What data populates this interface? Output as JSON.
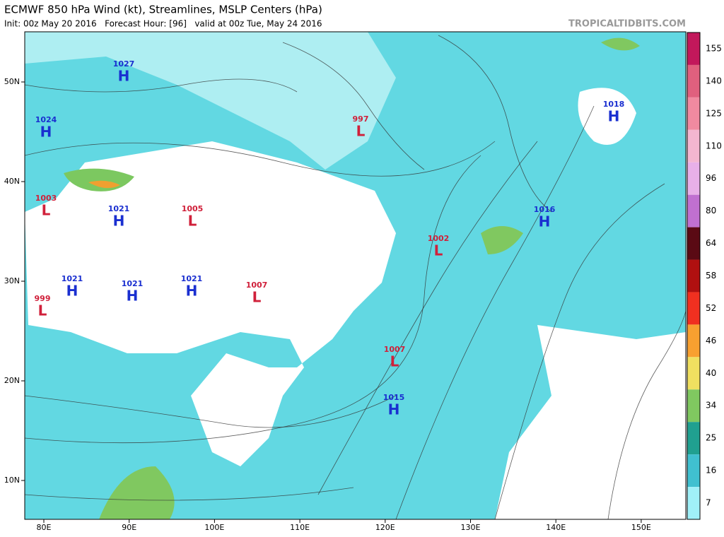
{
  "header": {
    "title": "ECMWF 850 hPa Wind (kt), Streamlines, MSLP Centers (hPa)",
    "subtitle": "Init: 00z May 20 2016   Forecast Hour: [96]   valid at 00z Tue, May 24 2016",
    "site": "TROPICALTIDBITS.COM"
  },
  "axes": {
    "lon_labels": [
      "80E",
      "90E",
      "100E",
      "110E",
      "120E",
      "130E",
      "140E",
      "150E"
    ],
    "lat_labels": [
      "50N",
      "40N",
      "30N",
      "20N",
      "10N"
    ]
  },
  "pressure_centers": [
    {
      "value": "1027",
      "type": "H"
    },
    {
      "value": "1024",
      "type": "H"
    },
    {
      "value": "997",
      "type": "L"
    },
    {
      "value": "1018",
      "type": "H"
    },
    {
      "value": "1003",
      "type": "L"
    },
    {
      "value": "1021",
      "type": "H"
    },
    {
      "value": "1005",
      "type": "L"
    },
    {
      "value": "1016",
      "type": "H"
    },
    {
      "value": "1002",
      "type": "L"
    },
    {
      "value": "1021",
      "type": "H"
    },
    {
      "value": "1021",
      "type": "H"
    },
    {
      "value": "1021",
      "type": "H"
    },
    {
      "value": "1007",
      "type": "L"
    },
    {
      "value": "999",
      "type": "L"
    },
    {
      "value": "1007",
      "type": "L"
    },
    {
      "value": "1015",
      "type": "H"
    }
  ],
  "colorbar": {
    "ticks": [
      155,
      140,
      125,
      110,
      96,
      80,
      64,
      58,
      52,
      46,
      40,
      34,
      25,
      16,
      7
    ],
    "colors": [
      "#c2185b",
      "#e0607e",
      "#f08aa0",
      "#f4b6d0",
      "#e8b0e8",
      "#c070d0",
      "#5a0a14",
      "#b01010",
      "#f03020",
      "#f8a030",
      "#f0e060",
      "#80c860",
      "#20a090",
      "#40c0d0",
      "#a0f0f8"
    ]
  }
}
